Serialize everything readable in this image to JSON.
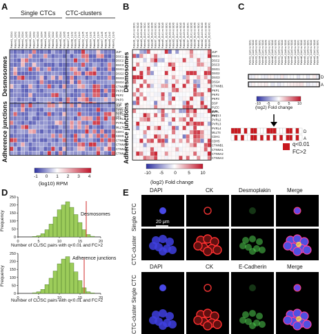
{
  "panels": {
    "A": {
      "letter": "A",
      "group_labels": [
        "Single CTCs",
        "CTC-clusters"
      ],
      "section_labels": [
        "Desmosomes",
        "Adherence junctions"
      ],
      "colorbar": {
        "ticks": [
          "-1",
          "0",
          "1",
          "2",
          "3",
          "4"
        ],
        "label": "(log10) RPM",
        "colors": [
          "#2b2fa0",
          "#ffffff",
          "#c0152a"
        ]
      }
    },
    "B": {
      "letter": "B",
      "section_labels": [
        "Desmosomes",
        "Adherence junctions"
      ],
      "colorbar": {
        "ticks": [
          "-10",
          "-5",
          "0",
          "5",
          "10"
        ],
        "label": "(log2) Fold change"
      }
    },
    "C": {
      "letter": "C",
      "row_labels": [
        "D",
        "A"
      ],
      "colorbar": {
        "ticks": [
          "-10",
          "-5",
          "0",
          "5",
          "10"
        ],
        "label": "(log2) Fold change"
      },
      "sig_legend": [
        "q<0.01",
        "FC>2"
      ]
    },
    "D": {
      "letter": "D",
      "histograms": [
        {
          "title": "Desmosomes",
          "ylabel": "Frequency",
          "yticks": [
            "0",
            "50",
            "100",
            "150",
            "200",
            "250"
          ],
          "xticks": [
            "0",
            "5",
            "10",
            "15",
            "20"
          ],
          "xlabel": "Number of CL/SC pairs with q<0.01 and FC>2"
        },
        {
          "title": "Adherence junctions",
          "ylabel": "Frequency",
          "yticks": [
            "0",
            "50",
            "100",
            "150",
            "200",
            "250"
          ],
          "xticks": [
            "0",
            "5",
            "10",
            "15",
            "20"
          ],
          "xlabel": "Number of CL/SC pairs with q<0.01 and FC>2"
        }
      ]
    },
    "E": {
      "letter": "E",
      "top_headers": [
        "DAPI",
        "CK",
        "Desmoplakin",
        "Merge"
      ],
      "bottom_headers": [
        "DAPI",
        "CK",
        "E-Cadherin",
        "Merge"
      ],
      "row_labels": [
        "Single CTC",
        "CTC-cluster"
      ],
      "scale_bar": "20 μm"
    }
  },
  "genes_desmosome": [
    "JUP",
    "DSC1",
    "DSC2",
    "DSC3",
    "DSG1",
    "DSG2",
    "DSG3",
    "DSG4",
    "CTNNB1",
    "PKP1",
    "PKP2",
    "PKP3",
    "DSP",
    "PLEC",
    "EVPL",
    "PPL"
  ],
  "genes_adherens": [
    "JUP",
    "PVRL1",
    "PVRL2",
    "PVRL3",
    "PVRL4",
    "MLLT4",
    "CDH1",
    "CDH5",
    "CTNNB1",
    "CTNNA1",
    "CTNNA2",
    "CTNNA3"
  ],
  "column_label_prefix": "Patient",
  "chart_data": [
    {
      "type": "bar",
      "title": "Desmosomes",
      "xlabel": "Number of CL/SC pairs with q<0.01 and FC>2",
      "ylabel": "Frequency",
      "categories": [
        4,
        5,
        6,
        7,
        8,
        9,
        10,
        11,
        12,
        13,
        14,
        15,
        16,
        17,
        18
      ],
      "values": [
        3,
        8,
        20,
        45,
        80,
        125,
        170,
        200,
        220,
        185,
        140,
        90,
        45,
        15,
        4
      ],
      "ylim": [
        0,
        250
      ],
      "xlim": [
        0,
        20
      ],
      "marker_line": 16.5
    },
    {
      "type": "bar",
      "title": "Adherence junctions",
      "xlabel": "Number of CL/SC pairs with q<0.01 and FC>2",
      "ylabel": "Frequency",
      "categories": [
        4,
        5,
        6,
        7,
        8,
        9,
        10,
        11,
        12,
        13,
        14,
        15,
        16,
        17,
        18
      ],
      "values": [
        4,
        10,
        25,
        55,
        95,
        140,
        185,
        215,
        230,
        190,
        135,
        80,
        35,
        10,
        3
      ],
      "ylim": [
        0,
        250
      ],
      "xlim": [
        0,
        20
      ],
      "marker_line": 16
    }
  ]
}
